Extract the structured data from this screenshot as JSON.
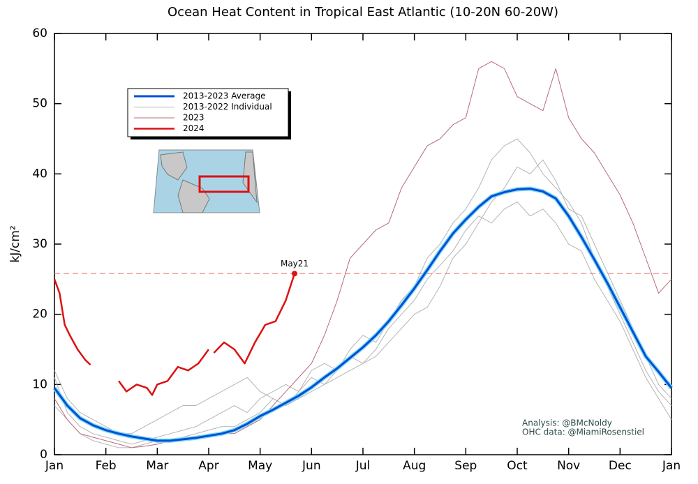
{
  "chart_data": {
    "type": "line",
    "title": "Ocean Heat Content in Tropical East Atlantic (10-20N 60-20W)",
    "y_label": "kJ/cm²",
    "xlim": [
      0,
      12
    ],
    "xticks": [
      {
        "value": 0,
        "label": "Jan"
      },
      {
        "value": 1,
        "label": "Feb"
      },
      {
        "value": 2,
        "label": "Mar"
      },
      {
        "value": 3,
        "label": "Apr"
      },
      {
        "value": 4,
        "label": "May"
      },
      {
        "value": 5,
        "label": "Jun"
      },
      {
        "value": 6,
        "label": "Jul"
      },
      {
        "value": 7,
        "label": "Aug"
      },
      {
        "value": 8,
        "label": "Sep"
      },
      {
        "value": 9,
        "label": "Oct"
      },
      {
        "value": 10,
        "label": "Nov"
      },
      {
        "value": 11,
        "label": "Dec"
      },
      {
        "value": 12,
        "label": "Jan"
      }
    ],
    "ylim": [
      0,
      60
    ],
    "yticks": [
      0,
      10,
      20,
      30,
      40,
      50,
      60
    ],
    "x": [
      0,
      0.25,
      0.5,
      0.75,
      1,
      1.25,
      1.5,
      1.75,
      2,
      2.25,
      2.5,
      2.75,
      3,
      3.25,
      3.5,
      3.75,
      4,
      4.25,
      4.5,
      4.75,
      5,
      5.25,
      5.5,
      5.75,
      6,
      6.25,
      6.5,
      6.75,
      7,
      7.25,
      7.5,
      7.75,
      8,
      8.25,
      8.5,
      8.75,
      9,
      9.25,
      9.5,
      9.75,
      10,
      10.25,
      10.5,
      10.75,
      11,
      11.25,
      11.5,
      11.75,
      12
    ],
    "series": [
      {
        "name": "2013-2022 Individual",
        "color": "#b4b4b4",
        "values": [
          11,
          6,
          4,
          3,
          2.5,
          2,
          1.5,
          2,
          2.5,
          3,
          3.5,
          4,
          5,
          6,
          7,
          6,
          8,
          9,
          10,
          9,
          12,
          13,
          12,
          15,
          17,
          16,
          19,
          22,
          24,
          28,
          30,
          33,
          35,
          38,
          42,
          44,
          45,
          43,
          40,
          38,
          36,
          33,
          28,
          24,
          20,
          16,
          12,
          9,
          7
        ]
      },
      {
        "color": "#b4b4b4",
        "values": [
          7,
          5,
          3,
          2,
          1.5,
          1,
          1,
          1.5,
          2,
          2,
          2.5,
          3,
          3.5,
          4,
          4,
          5,
          6,
          8,
          7,
          9,
          11,
          10,
          12,
          14,
          13,
          15,
          18,
          20,
          22,
          25,
          27,
          29,
          32,
          34,
          33,
          35,
          36,
          34,
          35,
          33,
          30,
          29,
          25,
          22,
          19,
          15,
          11,
          8,
          5
        ]
      },
      {
        "color": "#b4b4b4",
        "values": [
          12,
          8,
          6,
          5,
          4,
          3,
          3,
          4,
          5,
          6,
          7,
          7,
          8,
          9,
          10,
          11,
          9,
          8,
          7,
          8,
          9,
          10,
          11,
          12,
          13,
          14,
          16,
          18,
          20,
          21,
          24,
          28,
          30,
          33,
          36,
          38,
          41,
          40,
          42,
          39,
          35,
          34,
          30,
          26,
          22,
          18,
          14,
          10,
          8
        ]
      },
      {
        "name": "2023",
        "color": "#b86a7a",
        "values": [
          8,
          5,
          3,
          2.5,
          2,
          1.5,
          1,
          1.2,
          1.5,
          2,
          2,
          2.5,
          2.5,
          3,
          3,
          4,
          5,
          7,
          9,
          11,
          13,
          17,
          22,
          28,
          30,
          32,
          33,
          38,
          41,
          44,
          45,
          47,
          48,
          55,
          56,
          55,
          51,
          50,
          49,
          55,
          48,
          45,
          43,
          40,
          37,
          33,
          28,
          23,
          25
        ]
      },
      {
        "name": "2013-2023 Average",
        "color": "#0050d8",
        "values": [
          9.5,
          7,
          5.2,
          4.2,
          3.5,
          3,
          2.6,
          2.3,
          2,
          2,
          2.2,
          2.4,
          2.7,
          3,
          3.5,
          4.4,
          5.5,
          6.4,
          7.4,
          8.4,
          9.6,
          11,
          12.3,
          13.8,
          15.3,
          17,
          19,
          21.3,
          23.7,
          26.3,
          29,
          31.5,
          33.5,
          35.3,
          36.8,
          37.4,
          37.8,
          37.9,
          37.5,
          36.5,
          34,
          31,
          27.8,
          24.5,
          21,
          17.5,
          14,
          11.8,
          9.5
        ]
      },
      {
        "name": "2024",
        "color": "#dd1111",
        "x": [
          0,
          0.1,
          0.2,
          0.3,
          0.45,
          0.6,
          0.7,
          0.95,
          1.25,
          1.4,
          1.6,
          1.8,
          1.9,
          2.0,
          2.2,
          2.4,
          2.6,
          2.8,
          3.0,
          3.05,
          3.1,
          3.3,
          3.5,
          3.7,
          3.9,
          4.1,
          4.3,
          4.5,
          4.67
        ],
        "values": [
          25,
          23,
          18.5,
          17,
          15,
          13.5,
          12.8,
          null,
          10.5,
          9,
          10,
          9.5,
          8.5,
          10,
          10.5,
          12.5,
          12,
          13,
          15,
          null,
          14.5,
          16,
          15,
          13,
          16,
          18.5,
          19,
          22,
          25.8
        ]
      }
    ],
    "legend_order": [
      4,
      0,
      3,
      5
    ],
    "reference_line": {
      "value": 25.8,
      "color": "#f09090"
    },
    "annotation": {
      "text": "May21",
      "x": 4.67,
      "y": 25.8
    },
    "credits": [
      "Analysis: @BMcNoldy",
      "OHC data: @MiamiRosenstiel"
    ]
  }
}
